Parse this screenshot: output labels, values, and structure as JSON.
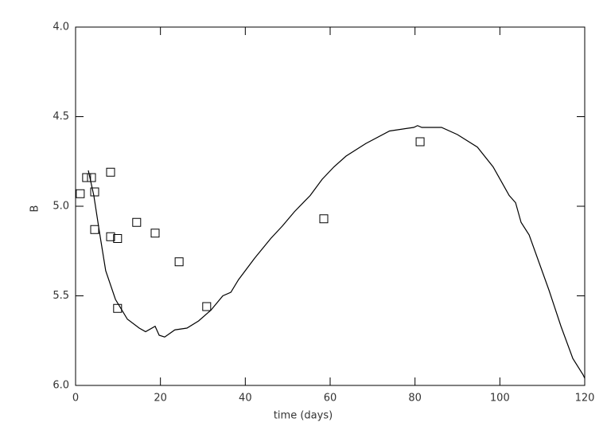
{
  "chart_data": {
    "type": "scatter",
    "xlabel": "time (days)",
    "ylabel": "B",
    "xlim": [
      0,
      120
    ],
    "xticks": [
      0,
      20,
      40,
      60,
      80,
      100,
      120
    ],
    "ylim": [
      6,
      4
    ],
    "yticks": [
      {
        "value": 4,
        "label": "4.0"
      },
      4.5,
      {
        "value": 5,
        "label": "5.0"
      },
      5.5,
      {
        "value": 6,
        "label": "6.0"
      }
    ],
    "series": [
      {
        "style": "markers",
        "color": "#000000",
        "x": [
          1.1,
          2.6,
          3.75,
          4.5,
          4.5,
          8.25,
          8.25,
          9.9,
          9.9,
          14.4,
          18.75,
          24.4,
          30.9,
          58.5,
          81.2
        ],
        "values": [
          4.93,
          4.84,
          4.84,
          4.92,
          5.13,
          4.81,
          5.17,
          5.18,
          5.57,
          5.09,
          5.15,
          5.31,
          5.56,
          5.07,
          4.64
        ]
      },
      {
        "style": "line",
        "color": "#000000",
        "x": [
          3,
          4.3,
          5.6,
          7.1,
          9.4,
          12.2,
          15,
          16.5,
          18.75,
          19.7,
          21,
          23.4,
          26.25,
          29,
          31.9,
          34.7,
          36.6,
          38.4,
          42.2,
          46,
          48.75,
          51.6,
          55.3,
          58.1,
          60.9,
          63.75,
          68.4,
          74,
          79.7,
          80.6,
          81.6,
          86.25,
          90,
          94.7,
          98.4,
          102.2,
          103.7,
          105,
          106.9,
          111.6,
          114.4,
          117.2,
          119.6,
          120
        ],
        "values": [
          4.8,
          4.94,
          5.14,
          5.36,
          5.52,
          5.63,
          5.68,
          5.7,
          5.67,
          5.72,
          5.73,
          5.69,
          5.68,
          5.64,
          5.58,
          5.5,
          5.48,
          5.41,
          5.29,
          5.18,
          5.11,
          5.03,
          4.94,
          4.85,
          4.78,
          4.72,
          4.65,
          4.58,
          4.56,
          4.55,
          4.56,
          4.56,
          4.6,
          4.67,
          4.78,
          4.94,
          4.98,
          5.09,
          5.16,
          5.47,
          5.67,
          5.85,
          5.94,
          5.96
        ]
      }
    ]
  }
}
